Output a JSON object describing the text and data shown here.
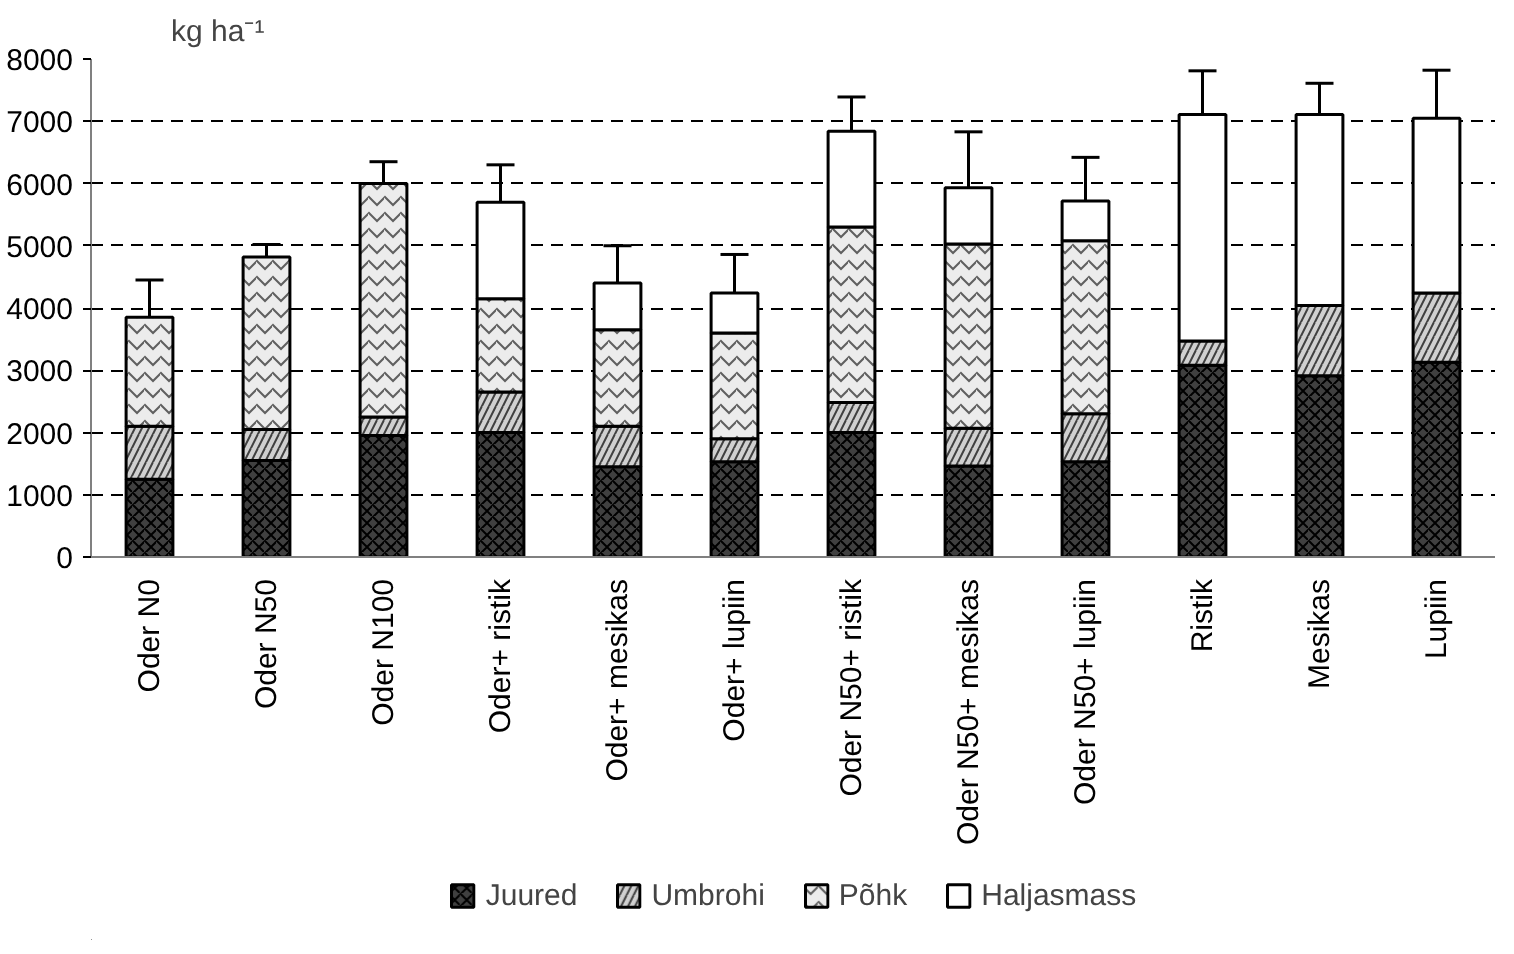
{
  "chart_data": {
    "type": "bar",
    "stacked": true,
    "ylabel": "kg ha⁻¹",
    "categories": [
      "Oder N0",
      "Oder N50",
      "Oder N100",
      "Oder+ ristik",
      "Oder+ mesikas",
      "Oder+ lupiin",
      "Oder N50+ ristik",
      "Oder N50+ mesikas",
      "Oder N50+ lupiin",
      "Ristik",
      "Mesikas",
      "Lupiin"
    ],
    "series": [
      {
        "name": "Juured",
        "color": "#404040",
        "values": [
          1250,
          1550,
          1950,
          2000,
          1450,
          1530,
          2000,
          1460,
          1530,
          3080,
          2910,
          3130
        ]
      },
      {
        "name": "Umbrohi",
        "color": "#d0d0d0",
        "values": [
          850,
          500,
          300,
          650,
          650,
          370,
          480,
          610,
          770,
          390,
          1130,
          1110
        ]
      },
      {
        "name": "Põhk",
        "color": "#ececec",
        "values": [
          1750,
          2770,
          3750,
          1500,
          1550,
          1700,
          2820,
          2960,
          2780,
          0,
          0,
          0
        ]
      },
      {
        "name": "Haljasmass",
        "color": "#ffffff",
        "values": [
          0,
          0,
          0,
          1550,
          750,
          640,
          1540,
          900,
          640,
          3640,
          3070,
          2810
        ],
        "errors": [
          600,
          200,
          350,
          600,
          600,
          620,
          550,
          900,
          700,
          700,
          500,
          770
        ]
      }
    ],
    "ylim": [
      0,
      8000
    ],
    "yticks": [
      0,
      1000,
      2000,
      3000,
      4000,
      5000,
      6000,
      7000,
      8000
    ],
    "grid": "y",
    "legend": "bottom"
  }
}
